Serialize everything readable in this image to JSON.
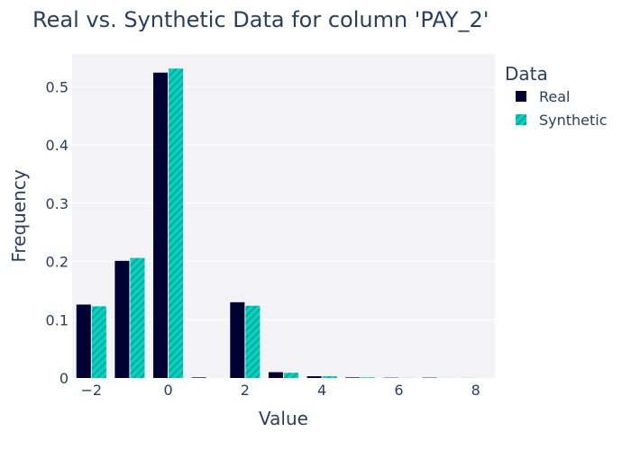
{
  "chart_data": {
    "type": "bar",
    "title": "Real vs. Synthetic Data for column 'PAY_2'",
    "xlabel": "Value",
    "ylabel": "Frequency",
    "x": [
      -2,
      -1,
      0,
      1,
      2,
      3,
      4,
      5,
      6,
      7,
      8
    ],
    "xlim": [
      -2.5,
      8.5
    ],
    "ylim": [
      0,
      0.556
    ],
    "xticks": [
      -2,
      0,
      2,
      4,
      6,
      8
    ],
    "xtick_labels": [
      "−2",
      "0",
      "2",
      "4",
      "6",
      "8"
    ],
    "yticks": [
      0,
      0.1,
      0.2,
      0.3,
      0.4,
      0.5
    ],
    "ytick_labels": [
      "0",
      "0.1",
      "0.2",
      "0.3",
      "0.4",
      "0.5"
    ],
    "legend_title": "Data",
    "legend_position": "right",
    "series": [
      {
        "name": "Real",
        "color": "#000033",
        "pattern": "solid",
        "values": [
          0.126,
          0.201,
          0.524,
          0.001,
          0.13,
          0.01,
          0.003,
          0.001,
          0.0005,
          0.0006,
          0.0001
        ]
      },
      {
        "name": "Synthetic",
        "color": "#00d4c0",
        "pattern": "diagonal-hatch",
        "values": [
          0.123,
          0.206,
          0.531,
          0.0,
          0.124,
          0.009,
          0.003,
          0.001,
          0.0002,
          0.0001,
          0.0
        ]
      }
    ],
    "plot_background": "#f3f3f6",
    "grid": true
  }
}
